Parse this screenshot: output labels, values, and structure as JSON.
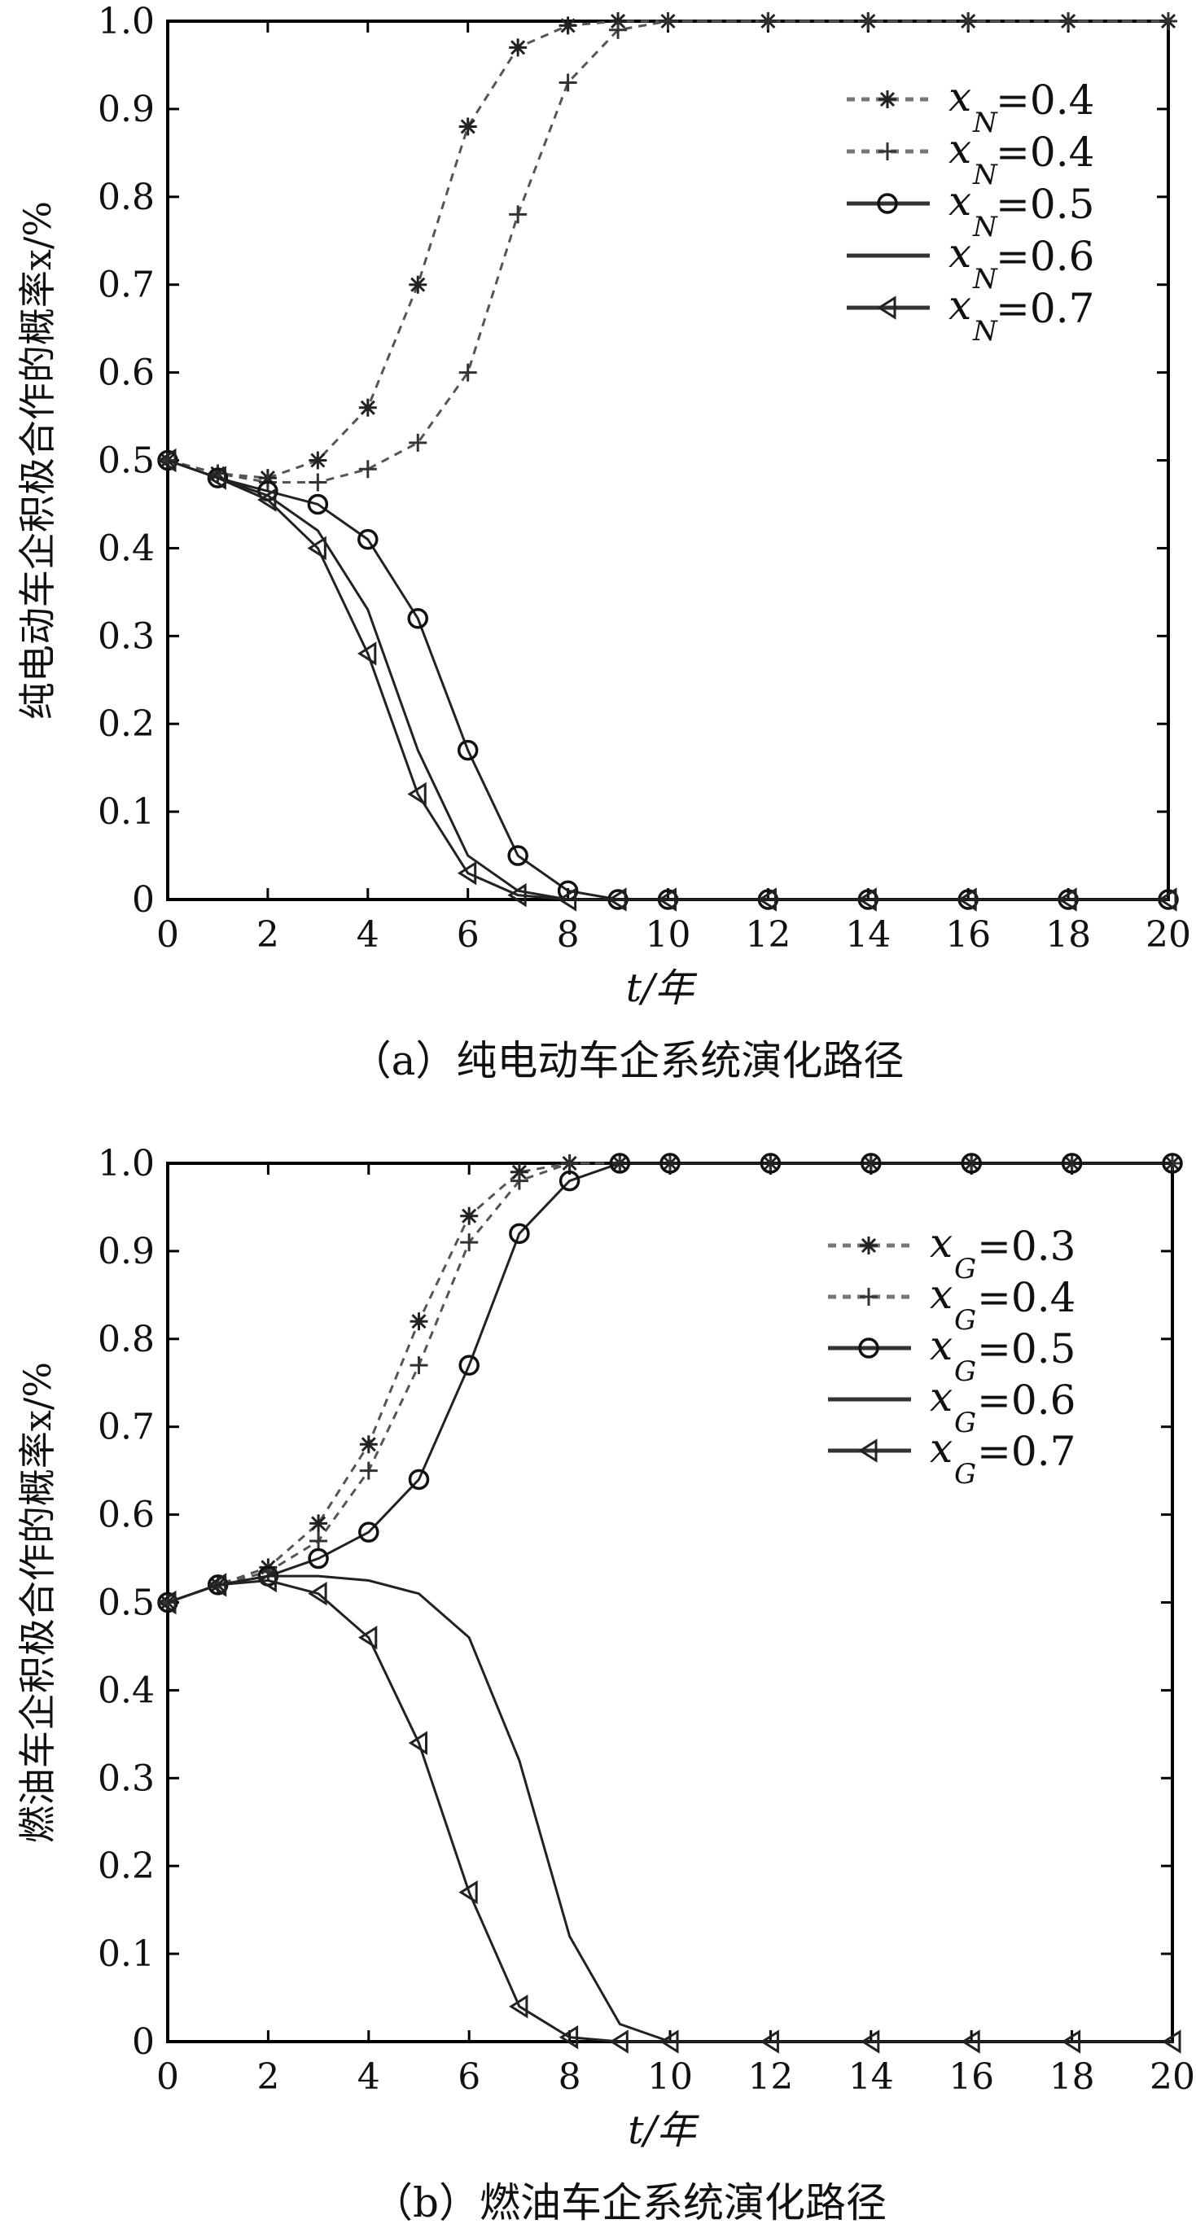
{
  "chart_data": [
    {
      "type": "line",
      "title": "",
      "caption": "（a）纯电动车企系统演化路径",
      "xlabel": "t/年",
      "ylabel": "纯电动车企积极合作的概率x/%",
      "xlim": [
        0,
        20
      ],
      "ylim": [
        0,
        1
      ],
      "xticks": [
        "0",
        "2",
        "4",
        "6",
        "8",
        "10",
        "12",
        "14",
        "16",
        "18",
        "20"
      ],
      "yticks": [
        "0",
        "0.1",
        "0.2",
        "0.3",
        "0.4",
        "0.5",
        "0.6",
        "0.7",
        "0.8",
        "0.9",
        "1.0"
      ],
      "legend_position": "top-right",
      "x": [
        0,
        1,
        2,
        3,
        4,
        5,
        6,
        7,
        8,
        9,
        10,
        12,
        14,
        16,
        18,
        20
      ],
      "series": [
        {
          "name": "x_N=0.4",
          "sub": "N",
          "value": "=0.4",
          "marker": "star",
          "dash": true,
          "values": [
            0.5,
            0.485,
            0.48,
            0.5,
            0.56,
            0.7,
            0.88,
            0.97,
            0.995,
            1,
            1,
            1,
            1,
            1,
            1,
            1
          ]
        },
        {
          "name": "x_N=0.4",
          "sub": "N",
          "value": "=0.4",
          "marker": "plus",
          "dash": true,
          "values": [
            0.5,
            0.485,
            0.475,
            0.475,
            0.49,
            0.52,
            0.6,
            0.78,
            0.93,
            0.99,
            1,
            1,
            1,
            1,
            1,
            1
          ]
        },
        {
          "name": "x_N=0.5",
          "sub": "N",
          "value": "=0.5",
          "marker": "circle",
          "dash": false,
          "values": [
            0.5,
            0.48,
            0.465,
            0.45,
            0.41,
            0.32,
            0.17,
            0.05,
            0.01,
            0,
            0,
            0,
            0,
            0,
            0,
            0
          ]
        },
        {
          "name": "x_N=0.6",
          "sub": "N",
          "value": "=0.6",
          "marker": "none",
          "dash": false,
          "values": [
            0.5,
            0.48,
            0.46,
            0.42,
            0.33,
            0.17,
            0.05,
            0.01,
            0,
            0,
            0,
            0,
            0,
            0,
            0,
            0
          ]
        },
        {
          "name": "x_N=0.7",
          "sub": "N",
          "value": "=0.7",
          "marker": "triangle",
          "dash": false,
          "values": [
            0.5,
            0.48,
            0.455,
            0.4,
            0.28,
            0.12,
            0.03,
            0.005,
            0,
            0,
            0,
            0,
            0,
            0,
            0,
            0
          ]
        }
      ]
    },
    {
      "type": "line",
      "title": "",
      "caption": "（b）燃油车企系统演化路径",
      "xlabel": "t/年",
      "ylabel": "燃油车企积极合作的概率x/%",
      "xlim": [
        0,
        20
      ],
      "ylim": [
        0,
        1
      ],
      "xticks": [
        "0",
        "2",
        "4",
        "6",
        "8",
        "10",
        "12",
        "14",
        "16",
        "18",
        "20"
      ],
      "yticks": [
        "0",
        "0.1",
        "0.2",
        "0.3",
        "0.4",
        "0.5",
        "0.6",
        "0.7",
        "0.8",
        "0.9",
        "1.0"
      ],
      "legend_position": "top-right",
      "x": [
        0,
        1,
        2,
        3,
        4,
        5,
        6,
        7,
        8,
        9,
        10,
        12,
        14,
        16,
        18,
        20
      ],
      "series": [
        {
          "name": "x_G=0.3",
          "sub": "G",
          "value": "=0.3",
          "marker": "star",
          "dash": true,
          "values": [
            0.5,
            0.52,
            0.54,
            0.59,
            0.68,
            0.82,
            0.94,
            0.99,
            1,
            1,
            1,
            1,
            1,
            1,
            1,
            1
          ]
        },
        {
          "name": "x_G=0.4",
          "sub": "G",
          "value": "=0.4",
          "marker": "plus",
          "dash": true,
          "values": [
            0.5,
            0.52,
            0.535,
            0.57,
            0.65,
            0.77,
            0.91,
            0.98,
            1,
            1,
            1,
            1,
            1,
            1,
            1,
            1
          ]
        },
        {
          "name": "x_G=0.5",
          "sub": "G",
          "value": "=0.5",
          "marker": "circle",
          "dash": false,
          "values": [
            0.5,
            0.52,
            0.53,
            0.55,
            0.58,
            0.64,
            0.77,
            0.92,
            0.98,
            1,
            1,
            1,
            1,
            1,
            1,
            1
          ]
        },
        {
          "name": "x_G=0.6",
          "sub": "G",
          "value": "=0.6",
          "marker": "none",
          "dash": false,
          "values": [
            0.5,
            0.52,
            0.53,
            0.53,
            0.525,
            0.51,
            0.46,
            0.32,
            0.12,
            0.02,
            0,
            0,
            0,
            0,
            0,
            0
          ]
        },
        {
          "name": "x_G=0.7",
          "sub": "G",
          "value": "=0.7",
          "marker": "triangle",
          "dash": false,
          "values": [
            0.5,
            0.52,
            0.525,
            0.51,
            0.46,
            0.34,
            0.17,
            0.04,
            0.005,
            0,
            0,
            0,
            0,
            0,
            0,
            0
          ]
        }
      ]
    }
  ]
}
